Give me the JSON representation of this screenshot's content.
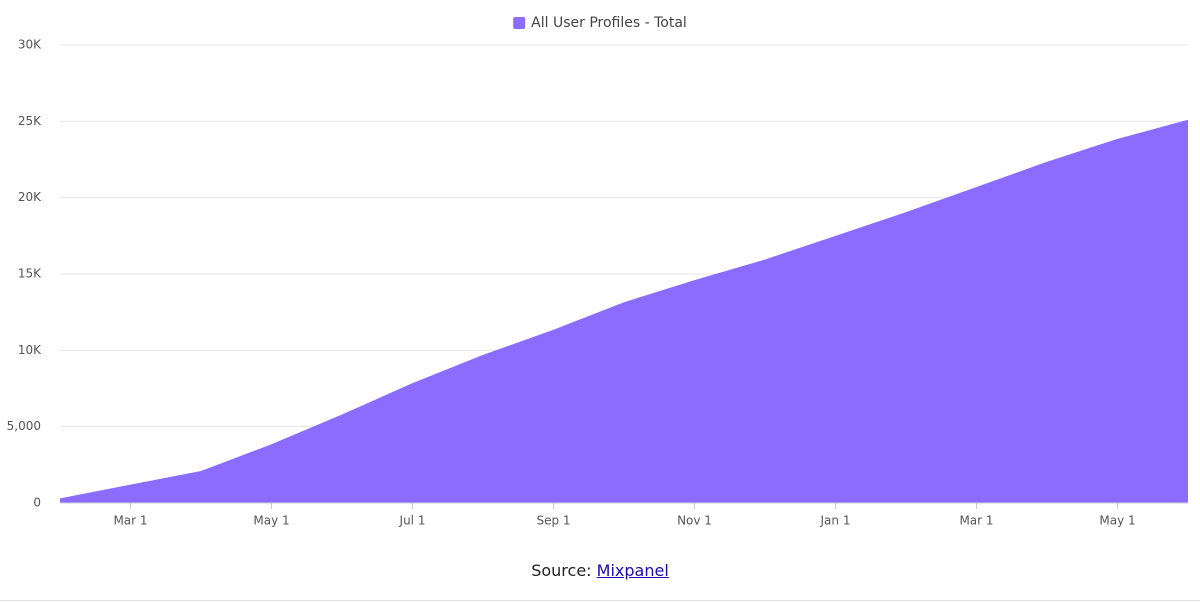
{
  "chart_data": {
    "type": "area",
    "categories": [
      null,
      "Mar 1",
      null,
      "May 1",
      null,
      "Jul 1",
      null,
      "Sep 1",
      null,
      "Nov 1",
      null,
      "Jan 1",
      null,
      "Mar 1",
      null,
      "May 1",
      null
    ],
    "series": [
      {
        "name": "All User Profiles - Total",
        "color": "#8a6cff",
        "values": [
          300,
          1200,
          2100,
          3850,
          5800,
          7850,
          9700,
          11350,
          13150,
          14600,
          15950,
          17500,
          19050,
          20700,
          22350,
          23850,
          25100
        ]
      }
    ],
    "ylim": [
      0,
      30000
    ],
    "yticks": [
      0,
      {
        "value": 5000,
        "label": "5,000"
      },
      {
        "value": 10000,
        "label": "10K"
      },
      {
        "value": 15000,
        "label": "15K"
      },
      {
        "value": 20000,
        "label": "20K"
      },
      {
        "value": 25000,
        "label": "25K"
      },
      {
        "value": 30000,
        "label": "30K"
      }
    ],
    "grid": true,
    "legend": "top"
  },
  "source": {
    "prefix": "Source:",
    "link": "Mixpanel"
  }
}
